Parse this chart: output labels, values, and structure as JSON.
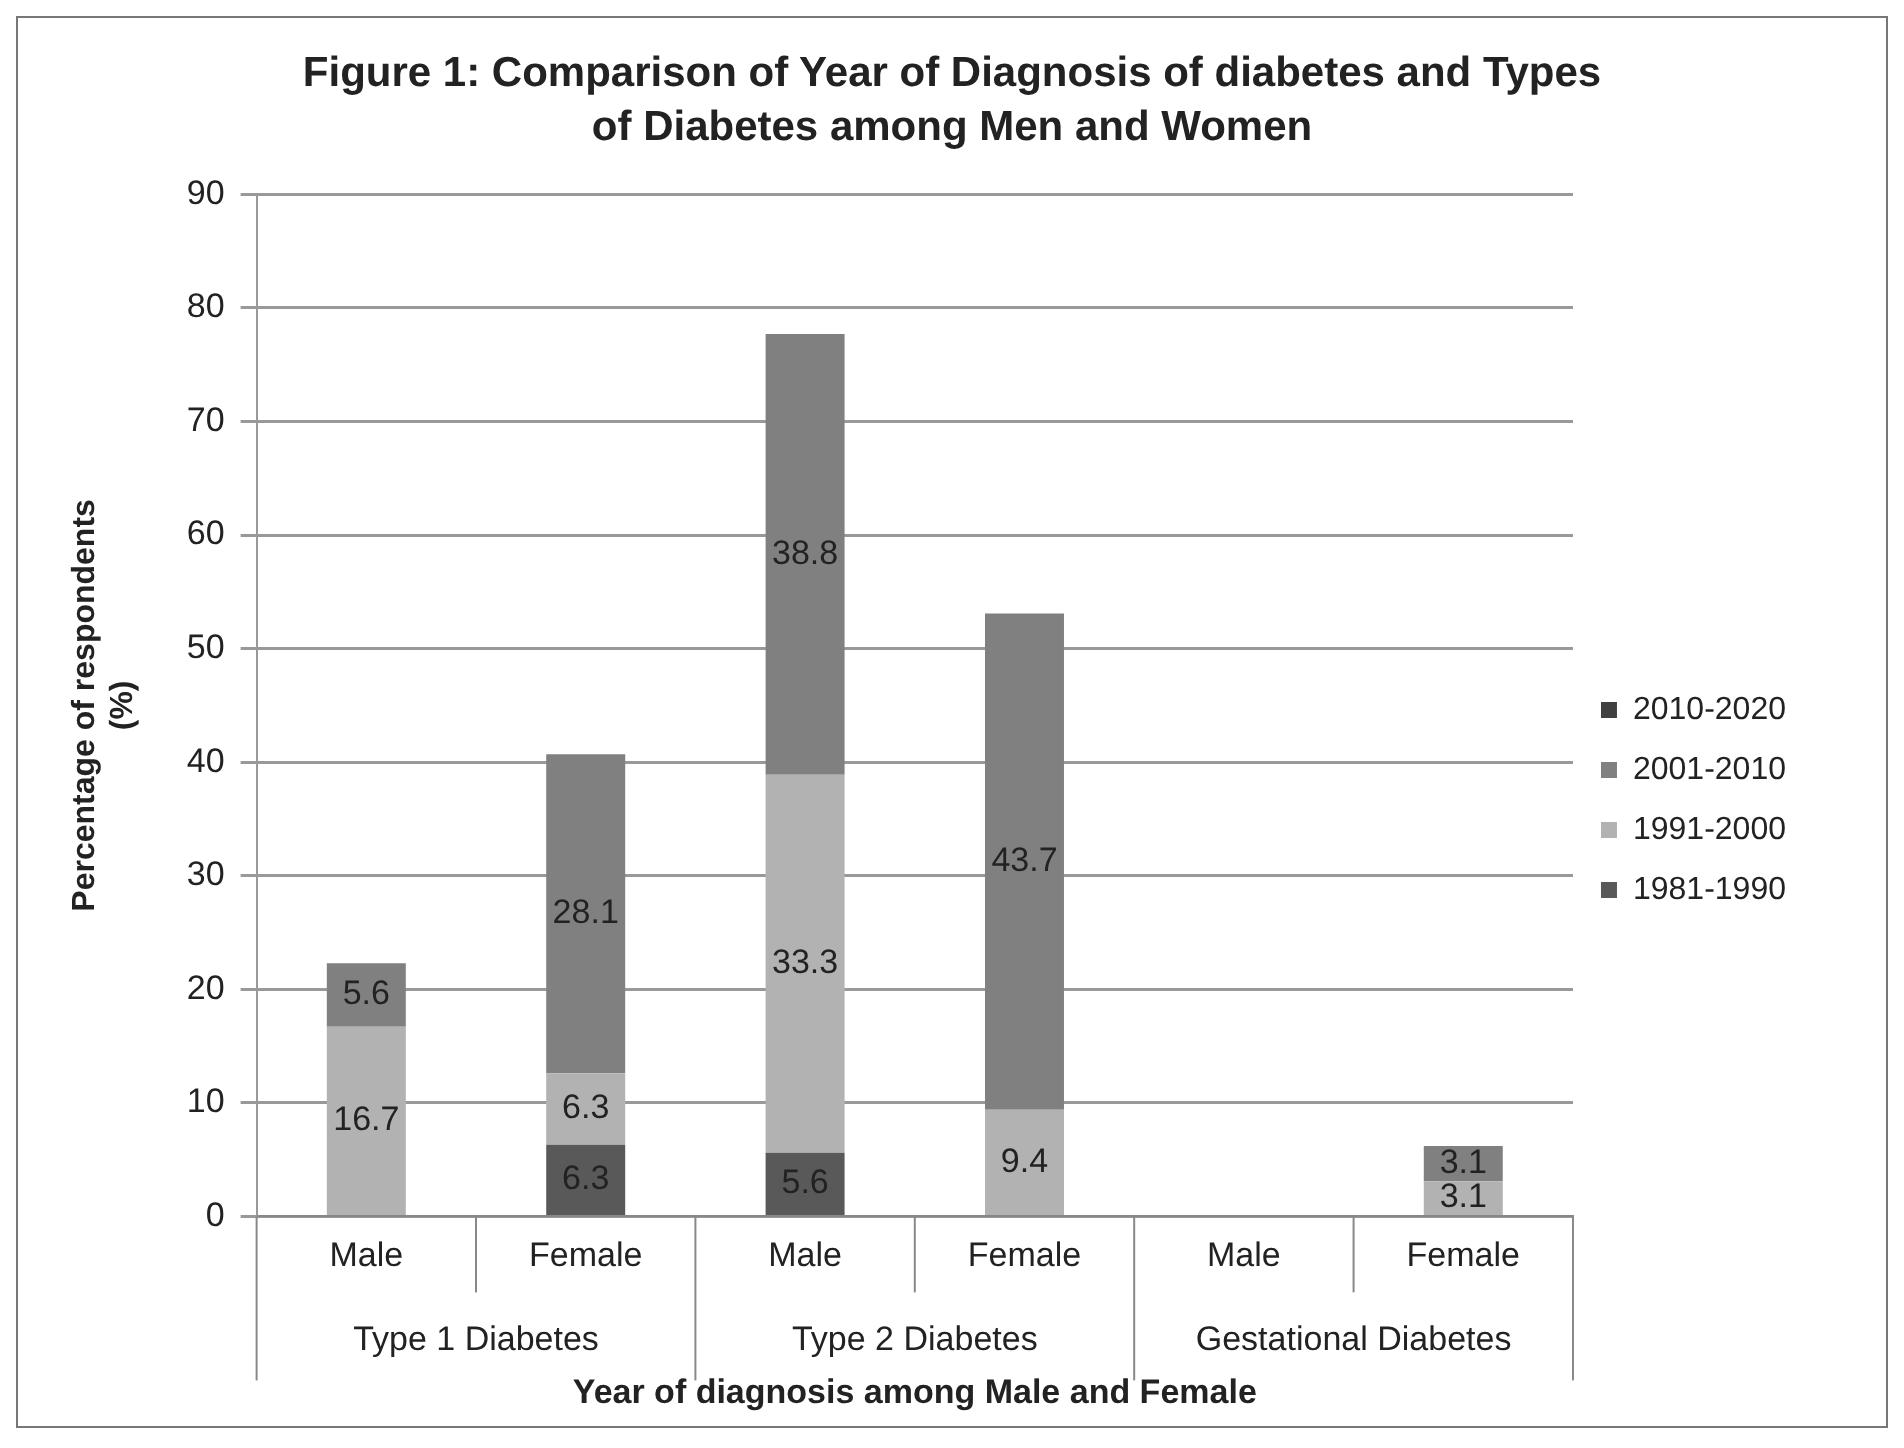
{
  "chart_data": {
    "type": "bar",
    "title": "Figure 1: Comparison  of Year of Diagnosis of diabetes and Types of Diabetes among Men and Women",
    "xlabel": "Year of diagnosis among Male and Female",
    "ylabel": "Percentage of respondents (%)",
    "categories": [
      "Male",
      "Female",
      "Male",
      "Female",
      "Male",
      "Female"
    ],
    "annotations": [
      "Type 1 Diabetes",
      "Type 2 Diabetes",
      "Gestational Diabetes"
    ],
    "series": [
      {
        "name": "1981-1990",
        "color": "#595959",
        "values": [
          null,
          6.3,
          5.6,
          null,
          null,
          null
        ]
      },
      {
        "name": "1991-2000",
        "color": "#b2b2b2",
        "values": [
          16.7,
          6.3,
          33.3,
          9.4,
          null,
          3.1
        ]
      },
      {
        "name": "2001-2010",
        "color": "#808080",
        "values": [
          5.6,
          28.1,
          38.8,
          43.7,
          null,
          3.1
        ]
      },
      {
        "name": "2010-2020",
        "color": "#404040",
        "values": [
          null,
          null,
          null,
          null,
          null,
          null
        ]
      }
    ],
    "stacked": true,
    "ylim": [
      0,
      90
    ],
    "yticks": [
      0,
      10,
      20,
      30,
      40,
      50,
      60,
      70,
      80,
      90
    ],
    "grid": "y",
    "legend": "right",
    "data_labels": true
  }
}
